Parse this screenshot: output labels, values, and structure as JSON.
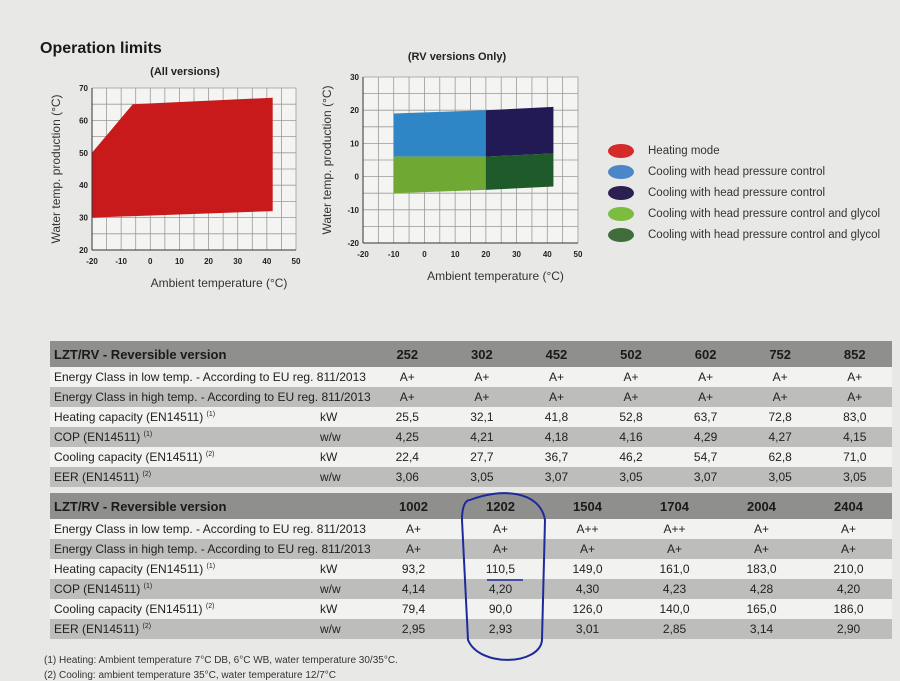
{
  "section_title": "Operation limits",
  "chart_data": [
    {
      "type": "area",
      "title": "(All versions)",
      "xlabel": "Ambient temperature (°C)",
      "ylabel": "Water temp. production (°C)",
      "xlim": [
        -20,
        50
      ],
      "ylim": [
        20,
        70
      ],
      "xticks": [
        "-20",
        "-10",
        "0",
        "10",
        "20",
        "30",
        "40",
        "50"
      ],
      "yticks": [
        "20",
        "30",
        "40",
        "50",
        "60",
        "70"
      ],
      "grid": true,
      "series": [
        {
          "color": "#c8191b",
          "polygon": [
            [
              -20,
              30
            ],
            [
              -20,
              50
            ],
            [
              -6,
              65
            ],
            [
              42,
              67
            ],
            [
              42,
              32
            ]
          ]
        }
      ]
    },
    {
      "type": "area",
      "title": "(RV versions Only)",
      "xlabel": "Ambient temperature (°C)",
      "ylabel": "Water temp. production (°C)",
      "xlim": [
        -20,
        50
      ],
      "ylim": [
        -20,
        30
      ],
      "xticks": [
        "-20",
        "-10",
        "0",
        "10",
        "20",
        "30",
        "40",
        "50"
      ],
      "yticks": [
        "-20",
        "-10",
        "0",
        "10",
        "20",
        "30"
      ],
      "grid": true,
      "series": [
        {
          "color": "#2f86c6",
          "polygon": [
            [
              -10,
              6
            ],
            [
              -10,
              19
            ],
            [
              20,
              20
            ],
            [
              20,
              6
            ]
          ]
        },
        {
          "color": "#221a55",
          "polygon": [
            [
              20,
              6
            ],
            [
              20,
              20
            ],
            [
              42,
              21
            ],
            [
              42,
              7
            ]
          ]
        },
        {
          "color": "#6fa832",
          "polygon": [
            [
              -10,
              -5
            ],
            [
              -10,
              6
            ],
            [
              20,
              6
            ],
            [
              20,
              -4
            ]
          ]
        },
        {
          "color": "#1e5a2a",
          "polygon": [
            [
              20,
              -4
            ],
            [
              20,
              6
            ],
            [
              42,
              7
            ],
            [
              42,
              -3
            ]
          ]
        }
      ]
    }
  ],
  "legend": [
    {
      "label": "Heating mode",
      "color": "#d42a2a"
    },
    {
      "label": "Cooling with head pressure control",
      "color": "#4a86c8"
    },
    {
      "label": "Cooling with head pressure control",
      "color": "#2c2050"
    },
    {
      "label": "Cooling with head pressure control and glycol",
      "color": "#7cbc40"
    },
    {
      "label": "Cooling with head pressure control and glycol",
      "color": "#3f6e3c"
    }
  ],
  "table1": {
    "header": "LZT/RV - Reversible version",
    "models": [
      "252",
      "302",
      "452",
      "502",
      "602",
      "752",
      "852"
    ],
    "rows": [
      {
        "label": "Energy Class in low temp. - According to EU reg. 811/2013",
        "unit": "",
        "values": [
          "A+",
          "A+",
          "A+",
          "A+",
          "A+",
          "A+",
          "A+"
        ]
      },
      {
        "label": "Energy Class in high temp. - According to EU reg. 811/2013",
        "unit": "",
        "values": [
          "A+",
          "A+",
          "A+",
          "A+",
          "A+",
          "A+",
          "A+"
        ]
      },
      {
        "label": "Heating capacity (EN14511)",
        "note": "(1)",
        "unit": "kW",
        "values": [
          "25,5",
          "32,1",
          "41,8",
          "52,8",
          "63,7",
          "72,8",
          "83,0"
        ]
      },
      {
        "label": "COP (EN14511)",
        "note": "(1)",
        "unit": "w/w",
        "values": [
          "4,25",
          "4,21",
          "4,18",
          "4,16",
          "4,29",
          "4,27",
          "4,15"
        ]
      },
      {
        "label": "Cooling capacity (EN14511)",
        "note": "(2)",
        "unit": "kW",
        "values": [
          "22,4",
          "27,7",
          "36,7",
          "46,2",
          "54,7",
          "62,8",
          "71,0"
        ]
      },
      {
        "label": "EER (EN14511)",
        "note": "(2)",
        "unit": "w/w",
        "values": [
          "3,06",
          "3,05",
          "3,07",
          "3,05",
          "3,07",
          "3,05",
          "3,05"
        ]
      }
    ]
  },
  "table2": {
    "header": "LZT/RV - Reversible version",
    "models": [
      "1002",
      "1202",
      "1504",
      "1704",
      "2004",
      "2404"
    ],
    "rows": [
      {
        "label": "Energy Class in low temp. - According to EU reg. 811/2013",
        "unit": "",
        "values": [
          "A+",
          "A+",
          "A++",
          "A++",
          "A+",
          "A+"
        ]
      },
      {
        "label": "Energy Class in high temp. - According to EU reg. 811/2013",
        "unit": "",
        "values": [
          "A+",
          "A+",
          "A+",
          "A+",
          "A+",
          "A+"
        ]
      },
      {
        "label": "Heating capacity (EN14511)",
        "note": "(1)",
        "unit": "kW",
        "values": [
          "93,2",
          "110,5",
          "149,0",
          "161,0",
          "183,0",
          "210,0"
        ]
      },
      {
        "label": "COP (EN14511)",
        "note": "(1)",
        "unit": "w/w",
        "values": [
          "4,14",
          "4,20",
          "4,30",
          "4,23",
          "4,28",
          "4,20"
        ]
      },
      {
        "label": "Cooling capacity (EN14511)",
        "note": "(2)",
        "unit": "kW",
        "values": [
          "79,4",
          "90,0",
          "126,0",
          "140,0",
          "165,0",
          "186,0"
        ]
      },
      {
        "label": "EER (EN14511)",
        "note": "(2)",
        "unit": "w/w",
        "values": [
          "2,95",
          "2,93",
          "3,01",
          "2,85",
          "3,14",
          "2,90"
        ]
      }
    ],
    "highlighted_model": "1202"
  },
  "footnotes": [
    "(1) Heating: Ambient temperature 7°C DB, 6°C WB, water temperature 30/35°C.",
    "(2) Cooling: ambient temperature 35°C, water temperature 12/7°C"
  ],
  "ink_color": "#1f2a9a"
}
